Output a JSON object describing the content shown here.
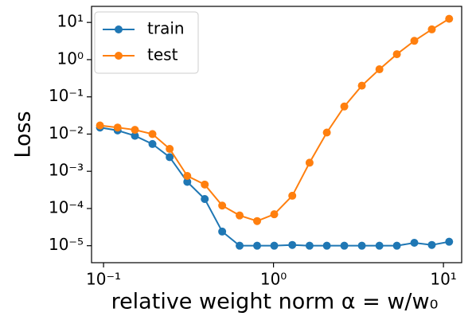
{
  "chart_data": {
    "type": "line",
    "xlabel": "relative weight norm α = w/w₀",
    "ylabel": "Loss",
    "x": [
      0.0953,
      0.121,
      0.153,
      0.194,
      0.245,
      0.311,
      0.394,
      0.499,
      0.632,
      0.801,
      1.01,
      1.29,
      1.63,
      2.06,
      2.61,
      3.31,
      4.2,
      5.32,
      6.74,
      8.54,
      10.8
    ],
    "series": [
      {
        "name": "train",
        "color": "#1f77b4",
        "values": [
          0.015,
          0.0125,
          0.009,
          0.0054,
          0.0024,
          0.00052,
          0.00018,
          2.4e-05,
          1e-05,
          1e-05,
          1e-05,
          1.05e-05,
          1e-05,
          1e-05,
          1e-05,
          1e-05,
          1e-05,
          1e-05,
          1.2e-05,
          1.05e-05,
          1.28e-05
        ]
      },
      {
        "name": "test",
        "color": "#ff7f0e",
        "values": [
          0.017,
          0.015,
          0.013,
          0.01,
          0.004,
          0.00075,
          0.00044,
          0.00012,
          6.5e-05,
          4.6e-05,
          7e-05,
          0.00022,
          0.0017,
          0.011,
          0.055,
          0.2,
          0.55,
          1.4,
          3.2,
          6.5,
          12.5
        ]
      }
    ],
    "xscale": "log",
    "yscale": "log",
    "xlim": [
      0.085,
      12.8
    ],
    "ylim": [
      3.5e-06,
      27
    ],
    "xticks": [
      {
        "value": 0.1,
        "label": "10⁻¹"
      },
      {
        "value": 1,
        "label": "10⁰"
      },
      {
        "value": 10,
        "label": "10¹"
      }
    ],
    "yticks": [
      {
        "value": 1e-05,
        "label": "10⁻⁵"
      },
      {
        "value": 0.0001,
        "label": "10⁻⁴"
      },
      {
        "value": 0.001,
        "label": "10⁻³"
      },
      {
        "value": 0.01,
        "label": "10⁻²"
      },
      {
        "value": 0.1,
        "label": "10⁻¹"
      },
      {
        "value": 1,
        "label": "10⁰"
      },
      {
        "value": 10,
        "label": "10¹"
      }
    ],
    "legend": "upper left",
    "grid": false
  }
}
